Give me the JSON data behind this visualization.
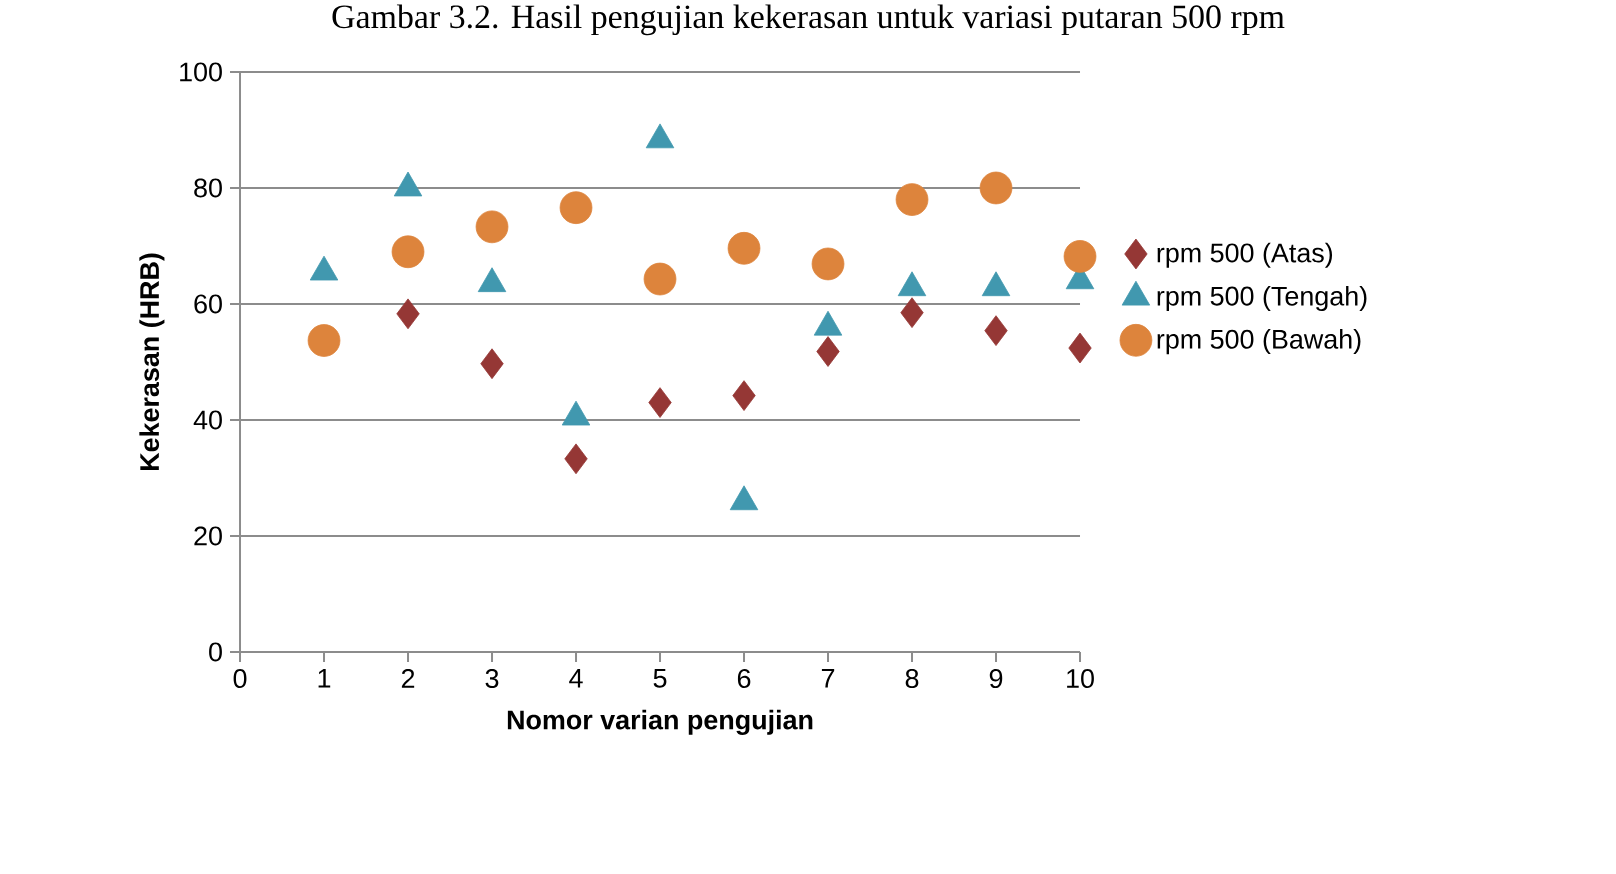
{
  "chart_data": {
    "type": "scatter",
    "title": "Gambar 3.2. Hasil pengujian kekerasan untuk variasi putaran 500 rpm",
    "xlabel": "Nomor varian pengujian",
    "ylabel": "Kekerasan (HRB)",
    "x": [
      1,
      2,
      3,
      4,
      5,
      6,
      7,
      8,
      9,
      10
    ],
    "series": [
      {
        "name": "rpm 500 (Atas)",
        "color": "#953735",
        "marker": "diamond",
        "values": [
          null,
          58.3,
          49.7,
          33.3,
          43,
          44.2,
          51.8,
          58.5,
          55.4,
          52.4
        ]
      },
      {
        "name": "rpm 500 (Tengah)",
        "color": "#4198af",
        "marker": "triangle",
        "values": [
          65.5,
          80,
          63.5,
          40.5,
          88.3,
          25.9,
          56,
          62.8,
          62.8,
          64
        ]
      },
      {
        "name": "rpm 500 (Bawah)",
        "color": "#dd843c",
        "marker": "circle",
        "values": [
          53.7,
          69,
          73.3,
          76.6,
          64.3,
          69.6,
          66.9,
          78,
          80,
          68.2
        ]
      }
    ],
    "xlim": [
      0,
      10
    ],
    "xticks": [
      0,
      1,
      2,
      3,
      4,
      5,
      6,
      7,
      8,
      9,
      10
    ],
    "ylim": [
      0,
      100
    ],
    "yticks": [
      0,
      20,
      40,
      60,
      80,
      100
    ],
    "grid": "y",
    "legend": "right"
  }
}
